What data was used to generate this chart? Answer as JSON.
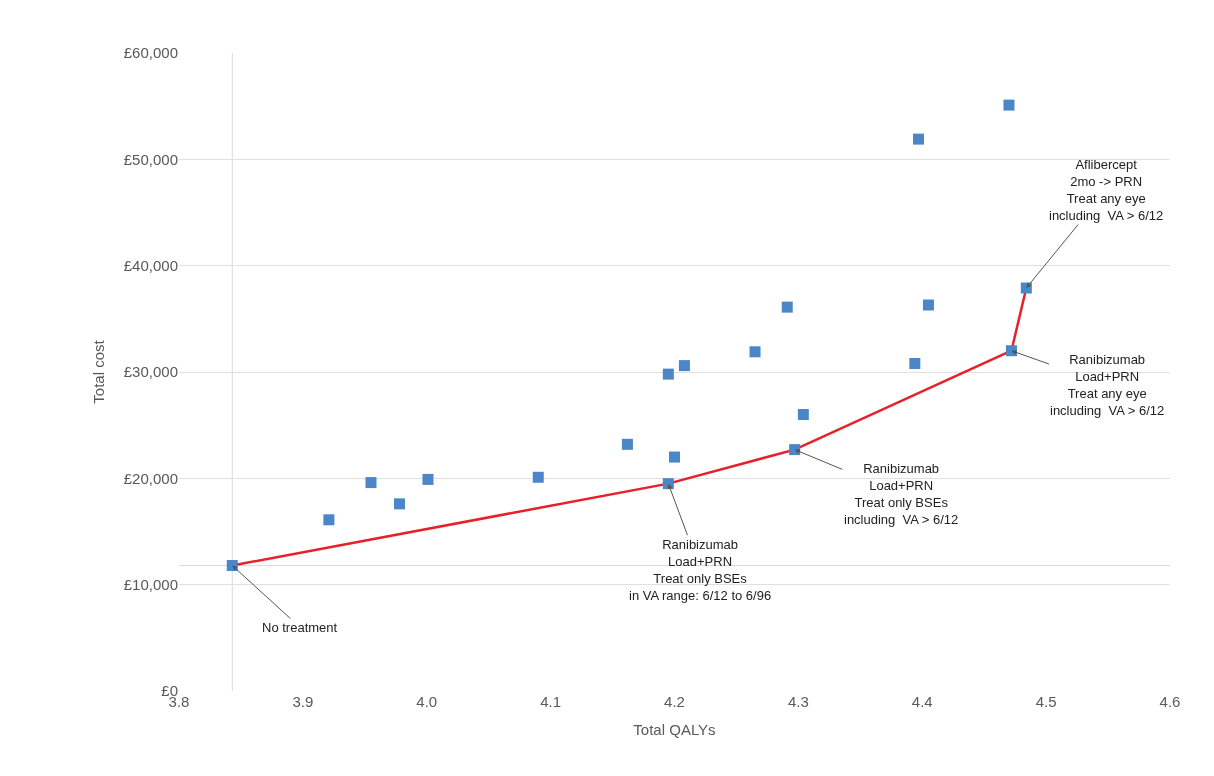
{
  "chart_data": {
    "type": "scatter",
    "xlabel": "Total QALYs",
    "ylabel": "Total cost",
    "series": [
      {
        "color": "#4a86c8",
        "marker": "square",
        "x": [
          3.843,
          3.921,
          3.955,
          3.978,
          4.001,
          4.09,
          4.162,
          4.195,
          4.208,
          4.2,
          4.195,
          4.47,
          4.397,
          4.484,
          4.291,
          4.405,
          4.265,
          4.394,
          4.472,
          4.304,
          4.297
        ],
        "values": [
          11800,
          16100,
          19600,
          17600,
          19900,
          20100,
          23200,
          29800,
          30600,
          22000,
          19500,
          55100,
          51900,
          37900,
          36100,
          36300,
          31900,
          30800,
          32000,
          26000,
          22700
        ]
      },
      {
        "type": "line",
        "color": "#e8202a",
        "line_style": "solid",
        "x": [
          3.843,
          4.195,
          4.297,
          4.472,
          4.484
        ],
        "values": [
          11800,
          19500,
          22700,
          32000,
          37900
        ]
      }
    ],
    "xlim": [
      3.8,
      4.6
    ],
    "xticks": [
      {
        "value": 3.8,
        "label": "3.8"
      },
      {
        "value": 3.9,
        "label": "3.9"
      },
      {
        "value": 4.0,
        "label": "4.0"
      },
      {
        "value": 4.1,
        "label": "4.1"
      },
      {
        "value": 4.2,
        "label": "4.2"
      },
      {
        "value": 4.3,
        "label": "4.3"
      },
      {
        "value": 4.4,
        "label": "4.4"
      },
      {
        "value": 4.5,
        "label": "4.5"
      },
      {
        "value": 4.6,
        "label": "4.6"
      }
    ],
    "ylim": [
      0,
      60000
    ],
    "yticks": [
      {
        "value": 0,
        "label": "£0"
      },
      {
        "value": 10000,
        "label": "£10,000"
      },
      {
        "value": 20000,
        "label": "£20,000"
      },
      {
        "value": 30000,
        "label": "£30,000"
      },
      {
        "value": 40000,
        "label": "£40,000"
      },
      {
        "value": 50000,
        "label": "£50,000"
      },
      {
        "value": 60000,
        "label": "£60,000"
      }
    ],
    "grid": "y",
    "ref_lines": [
      {
        "axis": "x",
        "value": 3.843,
        "color": "#d9d9d9"
      },
      {
        "axis": "y",
        "value": 11800,
        "color": "#d9d9d9"
      }
    ],
    "annotations": [
      {
        "text": "No treatment",
        "x": 3.843,
        "y": 11800
      },
      {
        "text": "Ranibizumab\nLoad+PRN\nTreat only BSEs\nin VA range: 6/12 to 6/96",
        "x": 4.195,
        "y": 19500
      },
      {
        "text": "Ranibizumab\nLoad+PRN\nTreat only BSEs\nincluding  VA > 6/12",
        "x": 4.297,
        "y": 22700
      },
      {
        "text": "Ranibizumab\nLoad+PRN\nTreat any eye\nincluding  VA > 6/12",
        "x": 4.472,
        "y": 32000
      },
      {
        "text": "Aflibercept\n2mo -> PRN\nTreat any eye\nincluding  VA > 6/12",
        "x": 4.484,
        "y": 37900
      }
    ]
  }
}
